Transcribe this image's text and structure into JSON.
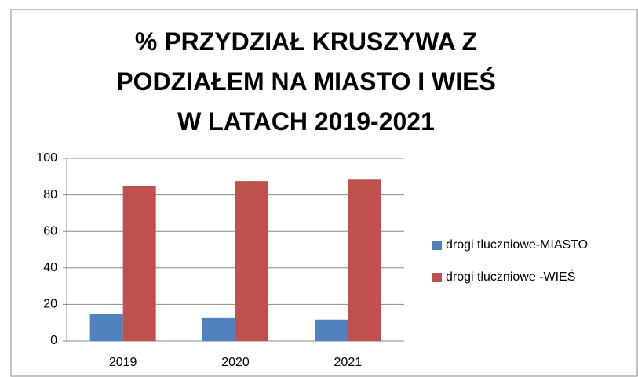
{
  "chart_data": {
    "type": "bar",
    "title": "% PRZYDZIAŁ KRUSZYWA Z PODZIAŁEM NA MIASTO I WIEŚ W LATACH 2019-2021",
    "categories": [
      "2019",
      "2020",
      "2021"
    ],
    "series": [
      {
        "name": "drogi tłuczniowe-MIASTO",
        "color": "#4f81bd",
        "values": [
          15,
          12.5,
          11.7
        ]
      },
      {
        "name": "drogi tłuczniowe -WIEŚ",
        "color": "#c0504d",
        "values": [
          85,
          87.5,
          88.3
        ]
      }
    ],
    "ylim": [
      0,
      100
    ],
    "yticks": [
      0,
      20,
      40,
      60,
      80,
      100
    ],
    "grid": true,
    "legend": "right"
  }
}
